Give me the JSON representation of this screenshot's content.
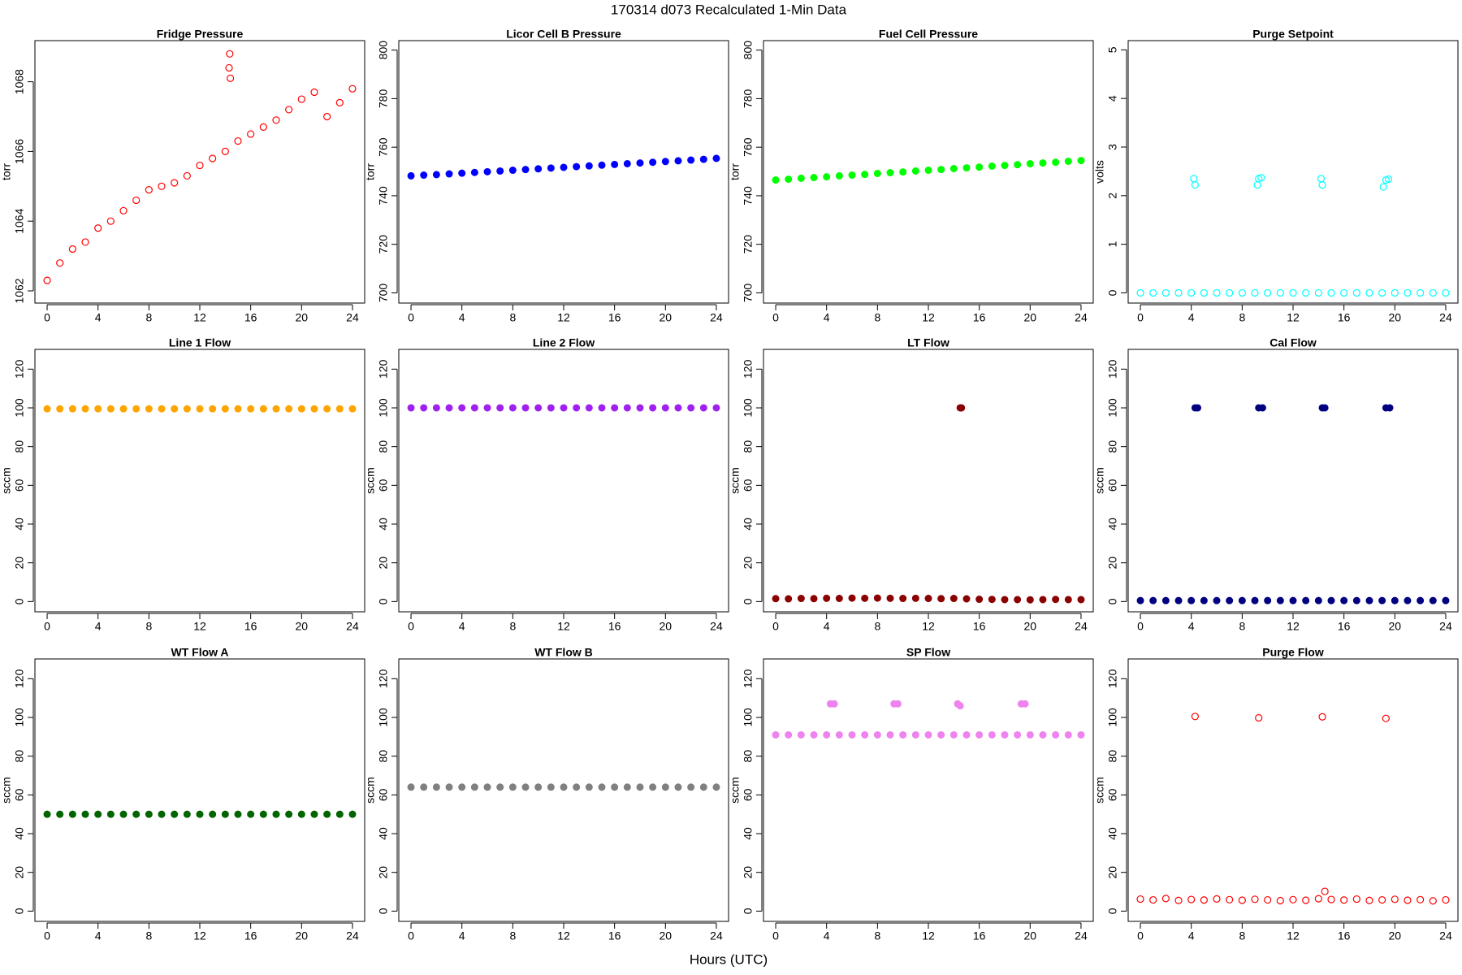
{
  "title": "170314   d073   Recalculated 1-Min Data",
  "x_label": "Hours (UTC)",
  "chart_data": [
    {
      "type": "scatter",
      "title": "Fridge Pressure",
      "y_label": "torr",
      "color": "#ff0000",
      "marker": "open",
      "x": [
        0,
        1,
        2,
        3,
        4,
        5,
        6,
        7,
        8,
        9,
        10,
        11,
        12,
        13,
        14,
        15,
        16,
        17,
        18,
        19,
        20,
        21,
        22,
        23,
        24,
        14.3,
        14.35,
        14.4
      ],
      "values": [
        1062.3,
        1062.8,
        1063.2,
        1063.4,
        1063.8,
        1064.0,
        1064.3,
        1064.6,
        1064.9,
        1065.0,
        1065.1,
        1065.3,
        1065.6,
        1065.8,
        1066.0,
        1066.3,
        1066.5,
        1066.7,
        1066.9,
        1067.2,
        1067.5,
        1067.7,
        1067.0,
        1067.4,
        1067.8,
        1068.4,
        1068.8,
        1068.1
      ],
      "xlim": [
        -0.96,
        24.96
      ],
      "ylim": [
        1061.65,
        1069.18
      ],
      "xticks": [
        0,
        4,
        8,
        12,
        16,
        20,
        24
      ],
      "yticks": [
        1062,
        1064,
        1066,
        1068
      ]
    },
    {
      "type": "scatter",
      "title": "Licor Cell B Pressure",
      "y_label": "torr",
      "color": "#0000ff",
      "marker": "filled",
      "x": [
        0,
        1,
        2,
        3,
        4,
        5,
        6,
        7,
        8,
        9,
        10,
        11,
        12,
        13,
        14,
        15,
        16,
        17,
        18,
        19,
        20,
        21,
        22,
        23,
        24
      ],
      "values": [
        748.2,
        748.5,
        748.7,
        749.0,
        749.3,
        749.6,
        749.9,
        750.2,
        750.5,
        750.8,
        751.1,
        751.4,
        751.7,
        752.0,
        752.3,
        752.6,
        752.9,
        753.2,
        753.5,
        753.8,
        754.1,
        754.4,
        754.7,
        755.0,
        755.4
      ],
      "xlim": [
        -0.96,
        24.96
      ],
      "ylim": [
        695.8,
        803.9
      ],
      "xticks": [
        0,
        4,
        8,
        12,
        16,
        20,
        24
      ],
      "yticks": [
        700,
        720,
        740,
        760,
        780,
        800
      ]
    },
    {
      "type": "scatter",
      "title": "Fuel Cell Pressure",
      "y_label": "torr",
      "color": "#00ff00",
      "marker": "filled",
      "x": [
        0,
        1,
        2,
        3,
        4,
        5,
        6,
        7,
        8,
        9,
        10,
        11,
        12,
        13,
        14,
        15,
        16,
        17,
        18,
        19,
        20,
        21,
        22,
        23,
        24
      ],
      "values": [
        746.5,
        746.8,
        747.2,
        747.5,
        747.8,
        748.2,
        748.5,
        748.8,
        749.2,
        749.5,
        749.8,
        750.2,
        750.5,
        750.8,
        751.2,
        751.5,
        751.8,
        752.2,
        752.5,
        752.8,
        753.2,
        753.5,
        753.8,
        754.2,
        754.5
      ],
      "xlim": [
        -0.96,
        24.96
      ],
      "ylim": [
        695.8,
        803.9
      ],
      "xticks": [
        0,
        4,
        8,
        12,
        16,
        20,
        24
      ],
      "yticks": [
        700,
        720,
        740,
        760,
        780,
        800
      ]
    },
    {
      "type": "scatter",
      "title": "Purge Setpoint",
      "y_label": "volts",
      "color": "#00ffff",
      "marker": "open",
      "x": [
        0,
        1,
        2,
        3,
        4,
        5,
        6,
        7,
        8,
        9,
        10,
        11,
        12,
        13,
        14,
        15,
        16,
        17,
        18,
        19,
        20,
        21,
        22,
        23,
        24,
        4.2,
        4.3,
        9.2,
        9.3,
        9.5,
        14.2,
        14.3,
        19.1,
        19.3,
        19.5
      ],
      "values": [
        0,
        0,
        0,
        0,
        0,
        0,
        0,
        0,
        0,
        0,
        0,
        0,
        0,
        0,
        0,
        0,
        0,
        0,
        0,
        0,
        0,
        0,
        0,
        0,
        0,
        2.35,
        2.22,
        2.22,
        2.35,
        2.37,
        2.35,
        2.22,
        2.18,
        2.32,
        2.34
      ],
      "xlim": [
        -0.96,
        24.96
      ],
      "ylim": [
        -0.21,
        5.19
      ],
      "xticks": [
        0,
        4,
        8,
        12,
        16,
        20,
        24
      ],
      "yticks": [
        0,
        1,
        2,
        3,
        4,
        5
      ]
    },
    {
      "type": "scatter",
      "title": "Line 1 Flow",
      "y_label": "sccm",
      "color": "#ffa500",
      "marker": "filled",
      "x": [
        0,
        1,
        2,
        3,
        4,
        5,
        6,
        7,
        8,
        9,
        10,
        11,
        12,
        13,
        14,
        15,
        16,
        17,
        18,
        19,
        20,
        21,
        22,
        23,
        24
      ],
      "values": [
        99.5,
        99.5,
        99.5,
        99.5,
        99.5,
        99.5,
        99.5,
        99.5,
        99.5,
        99.5,
        99.5,
        99.5,
        99.5,
        99.5,
        99.5,
        99.5,
        99.5,
        99.5,
        99.5,
        99.5,
        99.5,
        99.5,
        99.5,
        99.5,
        99.5
      ],
      "xlim": [
        -0.96,
        24.96
      ],
      "ylim": [
        -5.3,
        130.2
      ],
      "xticks": [
        0,
        4,
        8,
        12,
        16,
        20,
        24
      ],
      "yticks": [
        0,
        20,
        40,
        60,
        80,
        100,
        120
      ]
    },
    {
      "type": "scatter",
      "title": "Line 2 Flow",
      "y_label": "sccm",
      "color": "#a020f0",
      "marker": "filled",
      "x": [
        0,
        1,
        2,
        3,
        4,
        5,
        6,
        7,
        8,
        9,
        10,
        11,
        12,
        13,
        14,
        15,
        16,
        17,
        18,
        19,
        20,
        21,
        22,
        23,
        24
      ],
      "values": [
        100,
        100,
        100,
        100,
        100,
        100,
        100,
        100,
        100,
        100,
        100,
        100,
        100,
        100,
        100,
        100,
        100,
        100,
        100,
        100,
        100,
        100,
        100,
        100,
        100
      ],
      "xlim": [
        -0.96,
        24.96
      ],
      "ylim": [
        -5.3,
        130.2
      ],
      "xticks": [
        0,
        4,
        8,
        12,
        16,
        20,
        24
      ],
      "yticks": [
        0,
        20,
        40,
        60,
        80,
        100,
        120
      ]
    },
    {
      "type": "scatter",
      "title": "LT Flow",
      "y_label": "sccm",
      "color": "#8b0000",
      "marker": "filled",
      "x": [
        0,
        1,
        2,
        3,
        4,
        5,
        6,
        7,
        8,
        9,
        10,
        11,
        12,
        13,
        14,
        15,
        16,
        17,
        18,
        19,
        20,
        21,
        22,
        23,
        24,
        14.5,
        14.6
      ],
      "values": [
        1.5,
        1.4,
        1.6,
        1.5,
        1.7,
        1.6,
        1.8,
        1.7,
        1.8,
        1.7,
        1.6,
        1.7,
        1.6,
        1.5,
        1.6,
        1.4,
        1.2,
        1.1,
        1.0,
        1.0,
        0.9,
        1.0,
        1.1,
        1.0,
        1.0,
        100,
        100
      ],
      "xlim": [
        -0.96,
        24.96
      ],
      "ylim": [
        -5.3,
        130.2
      ],
      "xticks": [
        0,
        4,
        8,
        12,
        16,
        20,
        24
      ],
      "yticks": [
        0,
        20,
        40,
        60,
        80,
        100,
        120
      ]
    },
    {
      "type": "scatter",
      "title": "Cal Flow",
      "y_label": "sccm",
      "color": "#000080",
      "marker": "filled",
      "x": [
        0,
        1,
        2,
        3,
        4,
        5,
        6,
        7,
        8,
        9,
        10,
        11,
        12,
        13,
        14,
        15,
        16,
        17,
        18,
        19,
        20,
        21,
        22,
        23,
        24,
        4.3,
        4.5,
        9.3,
        9.6,
        14.3,
        14.5,
        19.3,
        19.6
      ],
      "values": [
        0.5,
        0.5,
        0.5,
        0.5,
        0.5,
        0.5,
        0.5,
        0.5,
        0.5,
        0.5,
        0.5,
        0.5,
        0.5,
        0.5,
        0.5,
        0.5,
        0.5,
        0.5,
        0.5,
        0.5,
        0.5,
        0.5,
        0.5,
        0.5,
        0.5,
        100,
        100,
        100,
        100,
        100,
        100,
        100,
        100
      ],
      "xlim": [
        -0.96,
        24.96
      ],
      "ylim": [
        -5.3,
        130.2
      ],
      "xticks": [
        0,
        4,
        8,
        12,
        16,
        20,
        24
      ],
      "yticks": [
        0,
        20,
        40,
        60,
        80,
        100,
        120
      ]
    },
    {
      "type": "scatter",
      "title": "WT Flow A",
      "y_label": "sccm",
      "color": "#006400",
      "marker": "filled",
      "x": [
        0,
        1,
        2,
        3,
        4,
        5,
        6,
        7,
        8,
        9,
        10,
        11,
        12,
        13,
        14,
        15,
        16,
        17,
        18,
        19,
        20,
        21,
        22,
        23,
        24
      ],
      "values": [
        50,
        50,
        50,
        50,
        50,
        50,
        50,
        50,
        50,
        50,
        50,
        50,
        50,
        50,
        50,
        50,
        50,
        50,
        50,
        50,
        50,
        50,
        50,
        50,
        50
      ],
      "xlim": [
        -0.96,
        24.96
      ],
      "ylim": [
        -5.3,
        130.2
      ],
      "xticks": [
        0,
        4,
        8,
        12,
        16,
        20,
        24
      ],
      "yticks": [
        0,
        20,
        40,
        60,
        80,
        100,
        120
      ]
    },
    {
      "type": "scatter",
      "title": "WT Flow B",
      "y_label": "sccm",
      "color": "#808080",
      "marker": "filled",
      "x": [
        0,
        1,
        2,
        3,
        4,
        5,
        6,
        7,
        8,
        9,
        10,
        11,
        12,
        13,
        14,
        15,
        16,
        17,
        18,
        19,
        20,
        21,
        22,
        23,
        24
      ],
      "values": [
        64,
        64,
        64,
        64,
        64,
        64,
        64,
        64,
        64,
        64,
        64,
        64,
        64,
        64,
        64,
        64,
        64,
        64,
        64,
        64,
        64,
        64,
        64,
        64,
        64
      ],
      "xlim": [
        -0.96,
        24.96
      ],
      "ylim": [
        -5.3,
        130.2
      ],
      "xticks": [
        0,
        4,
        8,
        12,
        16,
        20,
        24
      ],
      "yticks": [
        0,
        20,
        40,
        60,
        80,
        100,
        120
      ]
    },
    {
      "type": "scatter",
      "title": "SP Flow",
      "y_label": "sccm",
      "color": "#ee82ee",
      "marker": "filled",
      "x": [
        0,
        1,
        2,
        3,
        4,
        5,
        6,
        7,
        8,
        9,
        10,
        11,
        12,
        13,
        14,
        15,
        16,
        17,
        18,
        19,
        20,
        21,
        22,
        23,
        24,
        4.3,
        4.6,
        9.3,
        9.6,
        14.3,
        14.5,
        19.3,
        19.6
      ],
      "values": [
        91,
        91,
        91,
        91,
        91,
        91,
        91,
        91,
        91,
        91,
        91,
        91,
        91,
        91,
        91,
        91,
        91,
        91,
        91,
        91,
        91,
        91,
        91,
        91,
        91,
        107,
        107,
        107,
        107,
        107,
        106,
        107,
        107
      ],
      "xlim": [
        -0.96,
        24.96
      ],
      "ylim": [
        -5.3,
        130.2
      ],
      "xticks": [
        0,
        4,
        8,
        12,
        16,
        20,
        24
      ],
      "yticks": [
        0,
        20,
        40,
        60,
        80,
        100,
        120
      ]
    },
    {
      "type": "scatter",
      "title": "Purge Flow",
      "y_label": "sccm",
      "color": "#ff0000",
      "marker": "open",
      "x": [
        0,
        1,
        2,
        3,
        4,
        5,
        6,
        7,
        8,
        9,
        10,
        11,
        12,
        13,
        14,
        15,
        16,
        17,
        18,
        19,
        20,
        21,
        22,
        23,
        24,
        4.3,
        9.3,
        14.3,
        19.3,
        14.5
      ],
      "values": [
        6.2,
        5.8,
        6.5,
        5.5,
        6.0,
        5.7,
        6.3,
        5.9,
        5.6,
        6.1,
        5.8,
        5.4,
        5.9,
        5.6,
        6.4,
        6.0,
        5.7,
        6.2,
        5.5,
        5.8,
        6.1,
        5.6,
        5.9,
        5.3,
        5.8,
        100.5,
        99.8,
        100.3,
        99.5,
        10.2
      ],
      "xlim": [
        -0.96,
        24.96
      ],
      "ylim": [
        -5.3,
        130.2
      ],
      "xticks": [
        0,
        4,
        8,
        12,
        16,
        20,
        24
      ],
      "yticks": [
        0,
        20,
        40,
        60,
        80,
        100,
        120
      ]
    }
  ]
}
